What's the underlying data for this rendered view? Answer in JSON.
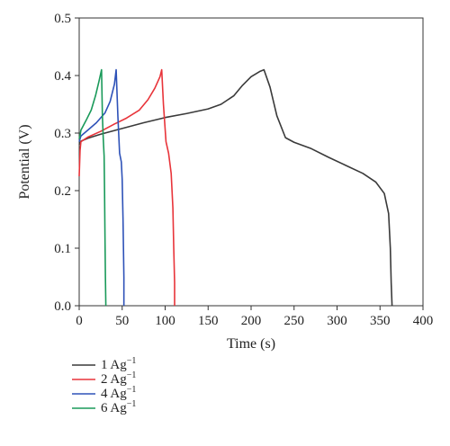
{
  "chart_data": {
    "type": "line",
    "xlabel": "Time (s)",
    "ylabel": "Potential (V)",
    "xlim": [
      0,
      400
    ],
    "ylim": [
      0,
      0.5
    ],
    "x_ticks": [
      0,
      50,
      100,
      150,
      200,
      250,
      300,
      350,
      400
    ],
    "y_ticks": [
      0.0,
      0.1,
      0.2,
      0.3,
      0.4,
      0.5
    ],
    "x_tick_labels": [
      "0",
      "50",
      "100",
      "150",
      "200",
      "250",
      "300",
      "350",
      "400"
    ],
    "y_tick_labels": [
      "0.0",
      "0.1",
      "0.2",
      "0.3",
      "0.4",
      "0.5"
    ],
    "grid": false,
    "legend_position": "bottom-left (outside plot)",
    "series": [
      {
        "name": "1 Ag",
        "name_superscript": "−1",
        "color": "#3a3a3a",
        "x": [
          0,
          2,
          10,
          25,
          50,
          75,
          100,
          125,
          150,
          165,
          180,
          190,
          200,
          210,
          215,
          222,
          230,
          240,
          250,
          270,
          290,
          310,
          330,
          345,
          355,
          360,
          362,
          363,
          364
        ],
        "y": [
          0.28,
          0.286,
          0.291,
          0.298,
          0.308,
          0.318,
          0.327,
          0.334,
          0.342,
          0.35,
          0.365,
          0.383,
          0.398,
          0.407,
          0.41,
          0.38,
          0.33,
          0.292,
          0.284,
          0.273,
          0.258,
          0.244,
          0.23,
          0.215,
          0.195,
          0.16,
          0.1,
          0.04,
          0.0
        ]
      },
      {
        "name": "2 Ag",
        "name_superscript": "−1",
        "color": "#e8343a",
        "x": [
          0,
          1,
          2,
          10,
          25,
          40,
          55,
          70,
          80,
          88,
          94,
          96,
          98,
          101,
          104,
          107,
          109,
          110,
          111,
          111
        ],
        "y": [
          0.225,
          0.27,
          0.285,
          0.293,
          0.303,
          0.315,
          0.326,
          0.34,
          0.358,
          0.378,
          0.398,
          0.41,
          0.35,
          0.285,
          0.265,
          0.23,
          0.17,
          0.1,
          0.04,
          0.0
        ]
      },
      {
        "name": "4 Ag",
        "name_superscript": "−1",
        "color": "#2e52b8",
        "x": [
          0,
          1,
          2,
          10,
          20,
          30,
          36,
          41,
          43,
          45,
          47,
          49,
          50,
          51,
          52,
          52
        ],
        "y": [
          0.285,
          0.29,
          0.295,
          0.305,
          0.318,
          0.335,
          0.355,
          0.385,
          0.41,
          0.33,
          0.265,
          0.25,
          0.22,
          0.15,
          0.05,
          0.0
        ]
      },
      {
        "name": "6 Ag",
        "name_superscript": "−1",
        "color": "#1a9a5a",
        "x": [
          0,
          1,
          2,
          8,
          14,
          19,
          23,
          26,
          27,
          28,
          29,
          29.5,
          30,
          30.5,
          31
        ],
        "y": [
          0.29,
          0.296,
          0.305,
          0.322,
          0.34,
          0.365,
          0.39,
          0.41,
          0.33,
          0.29,
          0.26,
          0.2,
          0.12,
          0.05,
          0.0
        ]
      }
    ]
  }
}
